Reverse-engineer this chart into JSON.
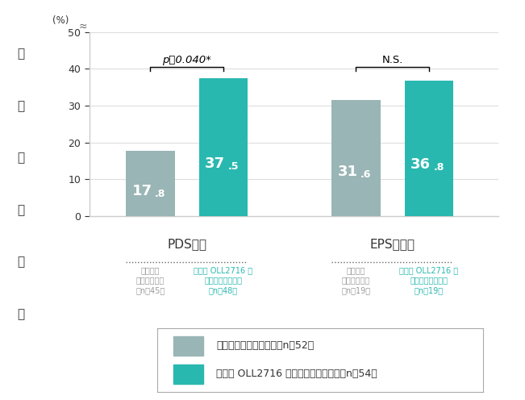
{
  "placebo_values": [
    17.8,
    31.6
  ],
  "yogurt_values": [
    37.5,
    36.8
  ],
  "placebo_color": "#9ab5b5",
  "yogurt_color": "#29b8b0",
  "bar_width": 0.28,
  "ylim": [
    0,
    50
  ],
  "yticks": [
    0,
    10,
    20,
    30,
    40,
    50
  ],
  "ylabel_chars": [
    "症",
    "状",
    "の",
    "除",
    "去",
    "率"
  ],
  "ylabel_unit": "(%)",
  "significance_pds": "p＝0.040*",
  "significance_eps": "N.S.",
  "group_label_pds": "PDS症状",
  "group_label_eps": "EPS様症状",
  "sub_labels": [
    "プラセボ\nヨーグルト群\n（n＝45）",
    "乳酸菌 OLL2716 株\n入りヨーグルト群\n（n＝48）",
    "プラセボ\nヨーグルト群\n（n＝19）",
    "乳酸菌 OLL2716 株\n入りヨーグルト群\n（n＝19）"
  ],
  "sub_label_colors": [
    "#999999",
    "#29b8b0",
    "#999999",
    "#29b8b0"
  ],
  "legend_placebo": "プラセボヨーグルト群（n＝52）",
  "legend_yogurt": "乳酸菌 OLL2716 株入りヨーグルト群（n＝54）",
  "value_labels": [
    "17",
    "37",
    "31",
    "36"
  ],
  "value_decimals": [
    ".8",
    ".5",
    ".6",
    ".8"
  ],
  "background_color": "#ffffff",
  "grid_color": "#dddddd",
  "spine_color": "#cccccc"
}
